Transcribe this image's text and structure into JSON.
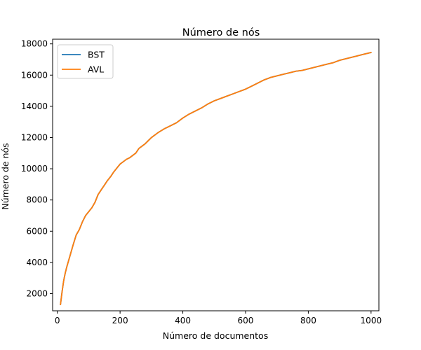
{
  "chart_data": {
    "type": "line",
    "title": "Número de nós",
    "xlabel": "Número de documentos",
    "ylabel": "Número de nós",
    "xlim": [
      -15,
      1025
    ],
    "ylim": [
      900,
      18300
    ],
    "xticks": [
      0,
      200,
      400,
      600,
      800,
      1000
    ],
    "yticks": [
      2000,
      4000,
      6000,
      8000,
      10000,
      12000,
      14000,
      16000,
      18000
    ],
    "grid": false,
    "legend_position": "upper-left",
    "series": [
      {
        "name": "BST",
        "color": "#1f77b4",
        "x": [
          10,
          15,
          20,
          25,
          30,
          40,
          50,
          60,
          70,
          80,
          90,
          100,
          110,
          120,
          130,
          140,
          150,
          160,
          170,
          180,
          190,
          200,
          210,
          220,
          230,
          240,
          250,
          260,
          270,
          280,
          290,
          300,
          320,
          340,
          360,
          380,
          400,
          420,
          440,
          460,
          480,
          500,
          520,
          540,
          560,
          580,
          600,
          620,
          640,
          660,
          680,
          700,
          720,
          740,
          760,
          780,
          800,
          820,
          840,
          860,
          880,
          900,
          920,
          940,
          960,
          980,
          1000
        ],
        "values": [
          1300,
          2100,
          2800,
          3300,
          3700,
          4400,
          5100,
          5750,
          6100,
          6600,
          7000,
          7250,
          7500,
          7850,
          8350,
          8650,
          8950,
          9250,
          9500,
          9800,
          10050,
          10300,
          10450,
          10600,
          10700,
          10850,
          11000,
          11300,
          11450,
          11600,
          11800,
          12000,
          12300,
          12550,
          12750,
          12950,
          13250,
          13500,
          13700,
          13900,
          14150,
          14350,
          14500,
          14650,
          14800,
          14950,
          15100,
          15300,
          15500,
          15700,
          15850,
          15950,
          16050,
          16150,
          16250,
          16300,
          16400,
          16500,
          16600,
          16700,
          16800,
          16950,
          17050,
          17150,
          17250,
          17350,
          17450
        ]
      },
      {
        "name": "AVL",
        "color": "#ff7f0e",
        "x": [
          10,
          15,
          20,
          25,
          30,
          40,
          50,
          60,
          70,
          80,
          90,
          100,
          110,
          120,
          130,
          140,
          150,
          160,
          170,
          180,
          190,
          200,
          210,
          220,
          230,
          240,
          250,
          260,
          270,
          280,
          290,
          300,
          320,
          340,
          360,
          380,
          400,
          420,
          440,
          460,
          480,
          500,
          520,
          540,
          560,
          580,
          600,
          620,
          640,
          660,
          680,
          700,
          720,
          740,
          760,
          780,
          800,
          820,
          840,
          860,
          880,
          900,
          920,
          940,
          960,
          980,
          1000
        ],
        "values": [
          1300,
          2100,
          2800,
          3300,
          3700,
          4400,
          5100,
          5750,
          6100,
          6600,
          7000,
          7250,
          7500,
          7850,
          8350,
          8650,
          8950,
          9250,
          9500,
          9800,
          10050,
          10300,
          10450,
          10600,
          10700,
          10850,
          11000,
          11300,
          11450,
          11600,
          11800,
          12000,
          12300,
          12550,
          12750,
          12950,
          13250,
          13500,
          13700,
          13900,
          14150,
          14350,
          14500,
          14650,
          14800,
          14950,
          15100,
          15300,
          15500,
          15700,
          15850,
          15950,
          16050,
          16150,
          16250,
          16300,
          16400,
          16500,
          16600,
          16700,
          16800,
          16950,
          17050,
          17150,
          17250,
          17350,
          17450
        ]
      }
    ]
  }
}
